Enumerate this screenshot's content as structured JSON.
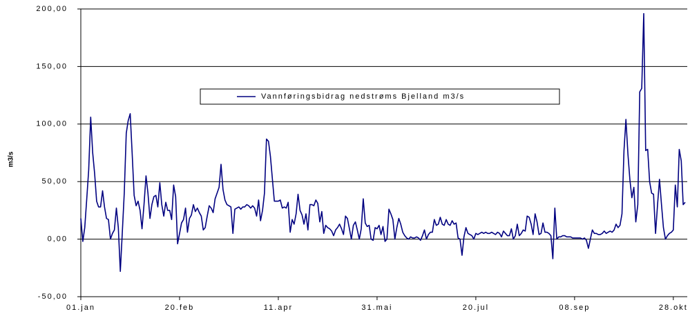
{
  "chart_data": {
    "type": "line",
    "title": null,
    "y_label": "m3/s",
    "ylim": [
      -50,
      200
    ],
    "yticks": [
      {
        "value": -50,
        "label": "-50,00"
      },
      {
        "value": 0,
        "label": "0,00"
      },
      {
        "value": 50,
        "label": "50,00"
      },
      {
        "value": 100,
        "label": "100,00"
      },
      {
        "value": 150,
        "label": "150,00"
      },
      {
        "value": 200,
        "label": "200,00"
      }
    ],
    "grid": true,
    "legend": "top-center",
    "categories": [
      "01.jan",
      null,
      null,
      null,
      null,
      null,
      null,
      null,
      null,
      null,
      null,
      null,
      null,
      null,
      null,
      null,
      null,
      null,
      null,
      null,
      null,
      null,
      null,
      null,
      null,
      null,
      null,
      null,
      null,
      null,
      null,
      null,
      null,
      null,
      null,
      null,
      null,
      null,
      null,
      null,
      null,
      null,
      null,
      null,
      null,
      null,
      null,
      null,
      null,
      null,
      "20.feb",
      null,
      null,
      null,
      null,
      null,
      null,
      null,
      null,
      null,
      null,
      null,
      null,
      null,
      null,
      null,
      null,
      null,
      null,
      null,
      null,
      null,
      null,
      null,
      null,
      null,
      null,
      null,
      null,
      null,
      null,
      null,
      null,
      null,
      null,
      null,
      null,
      null,
      null,
      null,
      null,
      null,
      null,
      null,
      null,
      null,
      null,
      null,
      null,
      null,
      "11.apr",
      null,
      null,
      null,
      null,
      null,
      null,
      null,
      null,
      null,
      null,
      null,
      null,
      null,
      null,
      null,
      null,
      null,
      null,
      null,
      null,
      null,
      null,
      null,
      null,
      null,
      null,
      null,
      null,
      null,
      null,
      null,
      null,
      null,
      null,
      null,
      null,
      null,
      null,
      null,
      null,
      null,
      null,
      null,
      null,
      null,
      null,
      null,
      null,
      null,
      "31.mai",
      null,
      null,
      null,
      null,
      null,
      null,
      null,
      null,
      null,
      null,
      null,
      null,
      null,
      null,
      null,
      null,
      null,
      null,
      null,
      null,
      null,
      null,
      null,
      null,
      null,
      null,
      null,
      null,
      null,
      null,
      null,
      null,
      null,
      null,
      null,
      null,
      null,
      null,
      null,
      null,
      null,
      null,
      null,
      null,
      null,
      null,
      null,
      null,
      null,
      "20.jul",
      null,
      null,
      null,
      null,
      null,
      null,
      null,
      null,
      null,
      null,
      null,
      null,
      null,
      null,
      null,
      null,
      null,
      null,
      null,
      null,
      null,
      null,
      null,
      null,
      null,
      null,
      null,
      null,
      null,
      null,
      null,
      null,
      null,
      null,
      null,
      null,
      null,
      null,
      null,
      null,
      null,
      null,
      null,
      null,
      null,
      null,
      null,
      null,
      null,
      "08.sep",
      null,
      null,
      null,
      null,
      null,
      null,
      null,
      null,
      null,
      null,
      null,
      null,
      null,
      null,
      null,
      null,
      null,
      null,
      null,
      null,
      null,
      null,
      null,
      null,
      null,
      null,
      null,
      null,
      null,
      null,
      null,
      null,
      null,
      null,
      null,
      null,
      null,
      null,
      null,
      null,
      null,
      null,
      null,
      null,
      null,
      null,
      null,
      null,
      null,
      "28.okt",
      null,
      null,
      null,
      null,
      null,
      null
    ],
    "series": [
      {
        "name": "Vannføringsbidrag nedstrøms Bjelland m3/s",
        "color": "#000080",
        "values": [
          18,
          -2,
          10,
          35,
          60,
          106,
          75,
          57,
          33,
          28,
          28,
          42,
          28,
          18,
          17,
          0,
          5,
          8,
          27,
          10,
          -28,
          5,
          40,
          92,
          103,
          109,
          75,
          38,
          29,
          33,
          25,
          9,
          30,
          55,
          40,
          18,
          30,
          37,
          38,
          28,
          49,
          30,
          20,
          32,
          25,
          25,
          17,
          47,
          37,
          -4,
          5,
          14,
          17,
          27,
          6,
          18,
          21,
          30,
          24,
          27,
          23,
          20,
          8,
          10,
          20,
          29,
          27,
          23,
          35,
          40,
          45,
          65,
          43,
          34,
          30,
          29,
          28,
          5,
          26,
          27,
          28,
          26,
          28,
          28,
          30,
          29,
          27,
          29,
          27,
          20,
          34,
          16,
          25,
          40,
          87,
          85,
          72,
          52,
          33,
          33,
          33,
          34,
          27,
          28,
          27,
          32,
          6,
          17,
          13,
          22,
          39,
          25,
          21,
          13,
          22,
          8,
          30,
          30,
          29,
          34,
          31,
          15,
          24,
          5,
          12,
          10,
          9,
          7,
          3,
          8,
          10,
          13,
          9,
          4,
          20,
          18,
          9,
          0,
          12,
          15,
          8,
          0,
          9,
          35,
          14,
          11,
          12,
          0,
          -1,
          10,
          9,
          12,
          4,
          11,
          -2,
          0,
          26,
          22,
          17,
          0,
          10,
          18,
          13,
          6,
          3,
          1,
          0,
          2,
          1,
          1,
          2,
          1,
          -1,
          3,
          8,
          0,
          4,
          6,
          6,
          17,
          12,
          13,
          19,
          13,
          12,
          17,
          13,
          12,
          16,
          13,
          14,
          1,
          0,
          -14,
          2,
          10,
          5,
          4,
          3,
          0,
          5,
          4,
          5,
          6,
          5,
          6,
          5,
          5,
          6,
          5,
          4,
          6,
          5,
          2,
          7,
          5,
          3,
          3,
          9,
          0,
          3,
          13,
          3,
          5,
          8,
          7,
          20,
          19,
          13,
          4,
          22,
          15,
          4,
          5,
          14,
          6,
          6,
          5,
          3,
          -17,
          27,
          0,
          2,
          2,
          3,
          3,
          2,
          2,
          2,
          1,
          1,
          1,
          1,
          1,
          0,
          1,
          -1,
          -8,
          0,
          8,
          5,
          5,
          4,
          4,
          5,
          7,
          5,
          6,
          7,
          6,
          8,
          13,
          10,
          12,
          22,
          77,
          104,
          74,
          52,
          36,
          45,
          15,
          30,
          128,
          131,
          196,
          77,
          78,
          50,
          40,
          39,
          5,
          30,
          52,
          30,
          10,
          0,
          3,
          5,
          6,
          8,
          47,
          28,
          78,
          68,
          30,
          32
        ]
      }
    ]
  }
}
